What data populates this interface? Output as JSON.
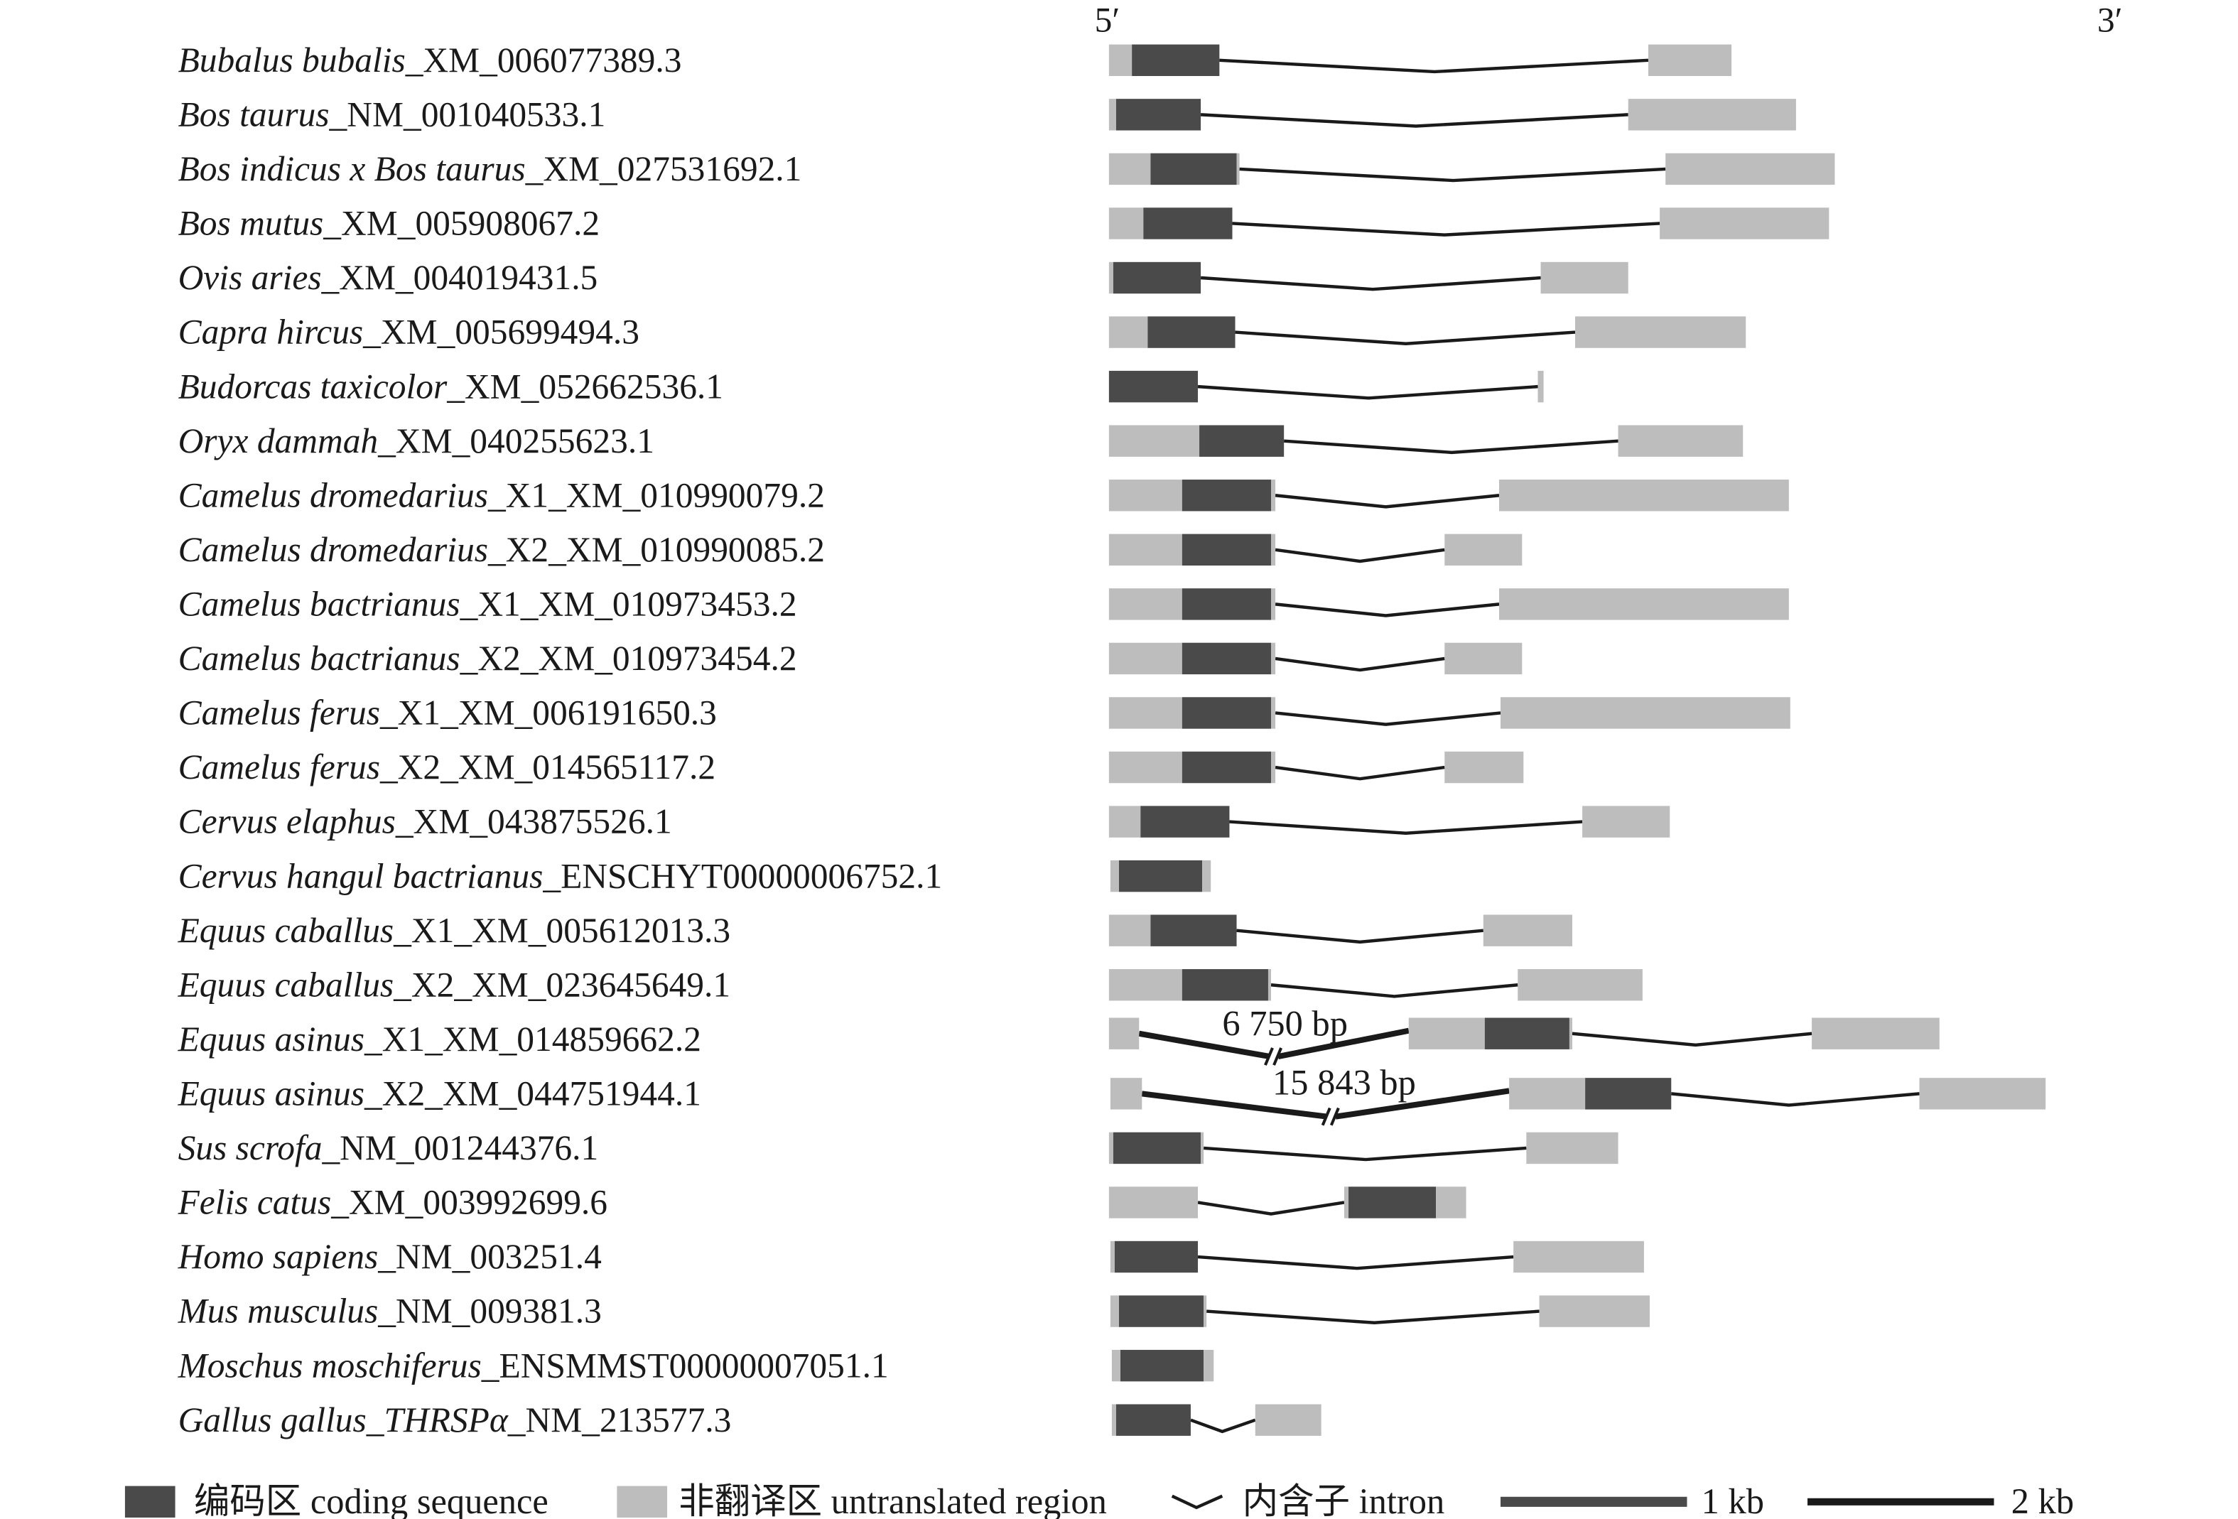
{
  "end_labels": {
    "five_prime": "5′",
    "three_prime": "3′"
  },
  "transcripts": [
    {
      "species": "Bubalus bubalis",
      "accession": "_XM_006077389.3"
    },
    {
      "species": "Bos taurus",
      "accession": "_NM_001040533.1"
    },
    {
      "species": "Bos indicus x Bos taurus",
      "accession": "_XM_027531692.1"
    },
    {
      "species": "Bos mutus",
      "accession": "_XM_005908067.2"
    },
    {
      "species": "Ovis aries",
      "accession": "_XM_004019431.5"
    },
    {
      "species": "Capra hircus",
      "accession": "_XM_005699494.3"
    },
    {
      "species": "Budorcas taxicolor",
      "accession": "_XM_052662536.1"
    },
    {
      "species": "Oryx dammah",
      "accession": "_XM_040255623.1"
    },
    {
      "species": "Camelus dromedarius",
      "accession": "_X1_XM_010990079.2"
    },
    {
      "species": "Camelus dromedarius",
      "accession": "_X2_XM_010990085.2"
    },
    {
      "species": "Camelus bactrianus",
      "accession": "_X1_XM_010973453.2"
    },
    {
      "species": "Camelus bactrianus",
      "accession": "_X2_XM_010973454.2"
    },
    {
      "species": "Camelus ferus",
      "accession": "_X1_XM_006191650.3"
    },
    {
      "species": "Camelus ferus",
      "accession": "_X2_XM_014565117.2"
    },
    {
      "species": "Cervus elaphus",
      "accession": "_XM_043875526.1"
    },
    {
      "species": "Cervus hangul bactrianus",
      "accession": "_ENSCHYT00000006752.1"
    },
    {
      "species": "Equus caballus",
      "accession": "_X1_XM_005612013.3"
    },
    {
      "species": "Equus caballus",
      "accession": "_X2_XM_023645649.1"
    },
    {
      "species": "Equus asinus",
      "accession": "_X1_XM_014859662.2"
    },
    {
      "species": "Equus asinus",
      "accession": "_X2_XM_044751944.1"
    },
    {
      "species": "Sus scrofa",
      "accession": "_NM_001244376.1"
    },
    {
      "species": "Felis catus",
      "accession": "_XM_003992699.6"
    },
    {
      "species": "Homo sapiens",
      "accession": "_NM_003251.4"
    },
    {
      "species": "Mus musculus",
      "accession": "_NM_009381.3"
    },
    {
      "species": "Moschus moschiferus",
      "accession": "_ENSMMST00000007051.1"
    },
    {
      "species": "Gallus gallus_THRSPα",
      "accession": "_NM_213577.3"
    }
  ],
  "intron_annotations": {
    "equus_asinus_x1": "6 750 bp",
    "equus_asinus_x2": "15 843 bp"
  },
  "legend": {
    "coding": "编码区 coding sequence",
    "utr": "非翻译区 untranslated region",
    "intron": "内含子 intron",
    "scale_1kb": "1 kb",
    "scale_2kb": "2 kb"
  },
  "colors": {
    "coding": "#4a4a4a",
    "utr": "#bdbdbd",
    "line": "#1a1a1a"
  }
}
